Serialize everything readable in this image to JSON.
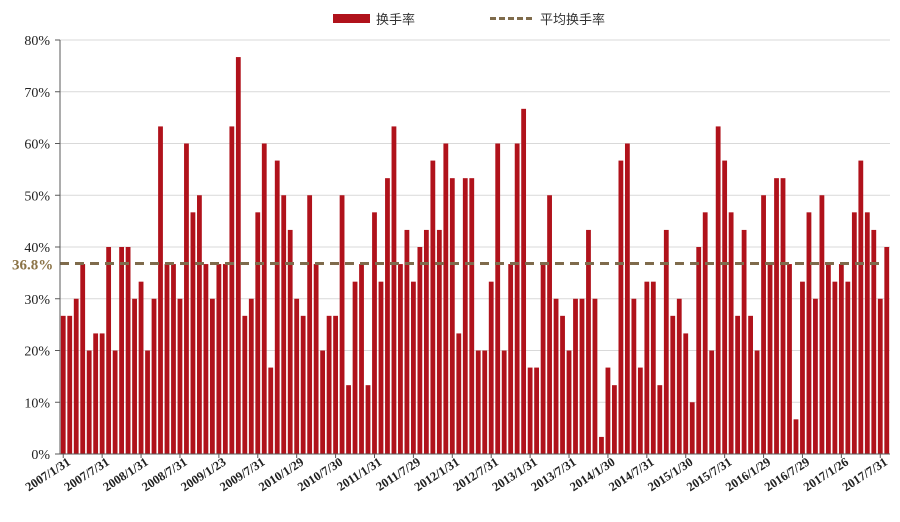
{
  "colors": {
    "bar": "#b0121b",
    "avg_line": "#7f6b4c",
    "avg_label": "#8b7346",
    "grid": "#d9d9d9",
    "axis": "#595959"
  },
  "chart_data": {
    "type": "bar",
    "legend": {
      "bar_label": "换手率",
      "line_label": "平均换手率",
      "placement": "top-center"
    },
    "average": {
      "value": 36.8,
      "label": "36.8%"
    },
    "ylim": [
      0,
      80
    ],
    "yticks": [
      "0%",
      "10%",
      "20%",
      "30%",
      "40%",
      "50%",
      "60%",
      "70%",
      "80%"
    ],
    "grid": true,
    "xtick_labels": [
      "2007/1/31",
      "2007/7/31",
      "2008/1/31",
      "2008/7/31",
      "2009/1/23",
      "2009/7/31",
      "2010/1/29",
      "2010/7/30",
      "2011/1/31",
      "2011/7/29",
      "2012/1/31",
      "2012/7/31",
      "2013/1/31",
      "2013/7/31",
      "2014/1/30",
      "2014/7/31",
      "2015/1/30",
      "2015/7/31",
      "2016/1/29",
      "2016/7/29",
      "2017/1/26",
      "2017/7/31"
    ],
    "values": [
      26.7,
      26.7,
      30,
      36.7,
      20,
      23.3,
      23.3,
      40,
      20,
      40,
      40,
      30,
      33.3,
      20,
      30,
      63.3,
      36.7,
      36.7,
      30,
      60,
      46.7,
      50,
      36.7,
      30,
      36.7,
      36.7,
      63.3,
      76.7,
      26.7,
      30,
      46.7,
      60,
      16.7,
      56.7,
      50,
      43.3,
      30,
      26.7,
      50,
      36.7,
      20,
      26.7,
      26.7,
      50,
      13.3,
      33.3,
      36.7,
      13.3,
      46.7,
      33.3,
      53.3,
      63.3,
      36.7,
      43.3,
      33.3,
      40,
      43.3,
      56.7,
      43.3,
      60,
      53.3,
      23.3,
      53.3,
      53.3,
      20,
      20,
      33.3,
      60,
      20,
      36.7,
      60,
      66.7,
      16.7,
      16.7,
      36.7,
      50,
      30,
      26.7,
      20,
      30,
      30,
      43.3,
      30,
      3.3,
      16.7,
      13.3,
      56.7,
      60,
      30,
      16.7,
      33.3,
      33.3,
      13.3,
      43.3,
      26.7,
      30,
      23.3,
      10,
      40,
      46.7,
      20,
      63.3,
      56.7,
      46.7,
      26.7,
      43.3,
      26.7,
      20,
      50,
      36.7,
      53.3,
      53.3,
      36.7,
      6.7,
      33.3,
      46.7,
      30,
      50,
      36.7,
      33.3,
      36.7,
      33.3,
      46.7,
      56.7,
      46.7,
      43.3,
      30,
      40
    ]
  }
}
